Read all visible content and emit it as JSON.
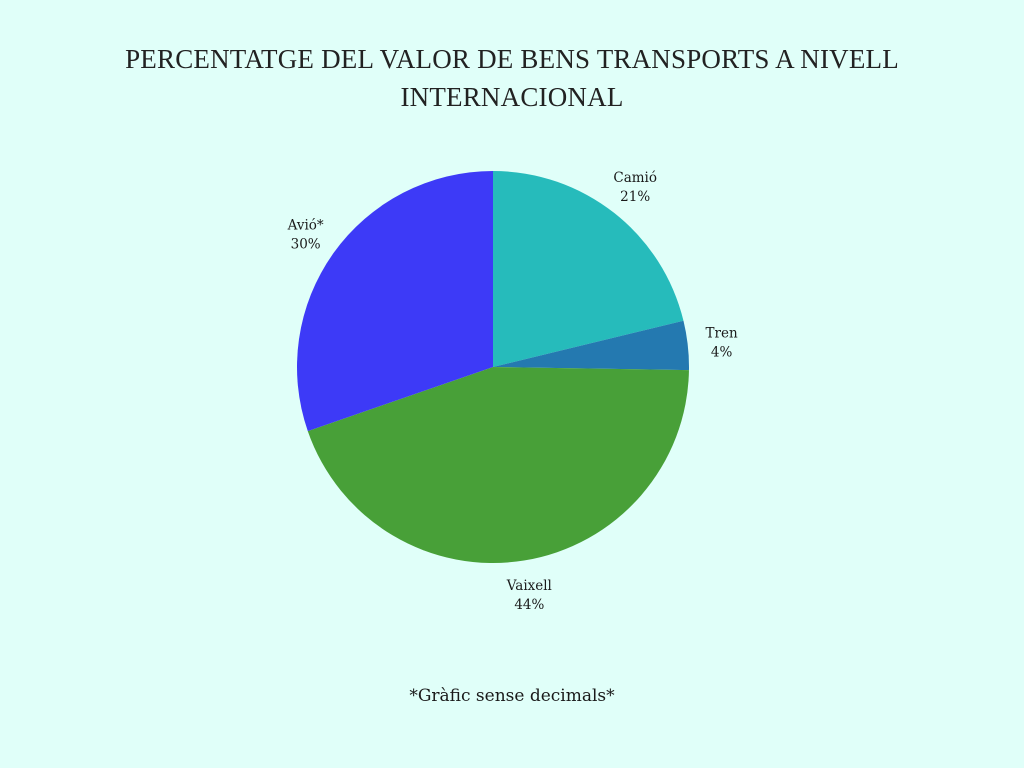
{
  "chart_data": {
    "type": "pie",
    "title": "PERCENTATGE DEL VALOR DE BENS TRANSPORTS A NIVELL INTERNACIONAL",
    "slices": [
      {
        "label": "Camió",
        "value": 21,
        "value_label": "21%",
        "color": "#26bbbb"
      },
      {
        "label": "Tren",
        "value": 4,
        "value_label": "4%",
        "color": "#2479b0"
      },
      {
        "label": "Vaixell",
        "value": 44,
        "value_label": "44%",
        "color": "#48a038"
      },
      {
        "label": "Avió*",
        "value": 30,
        "value_label": "30%",
        "color": "#3d3af7"
      }
    ],
    "start_angle": "12 o'clock",
    "direction": "clockwise",
    "legend": "none"
  },
  "footnote": "*Gràfic sense decimals*",
  "background_color": "#e0fff9"
}
